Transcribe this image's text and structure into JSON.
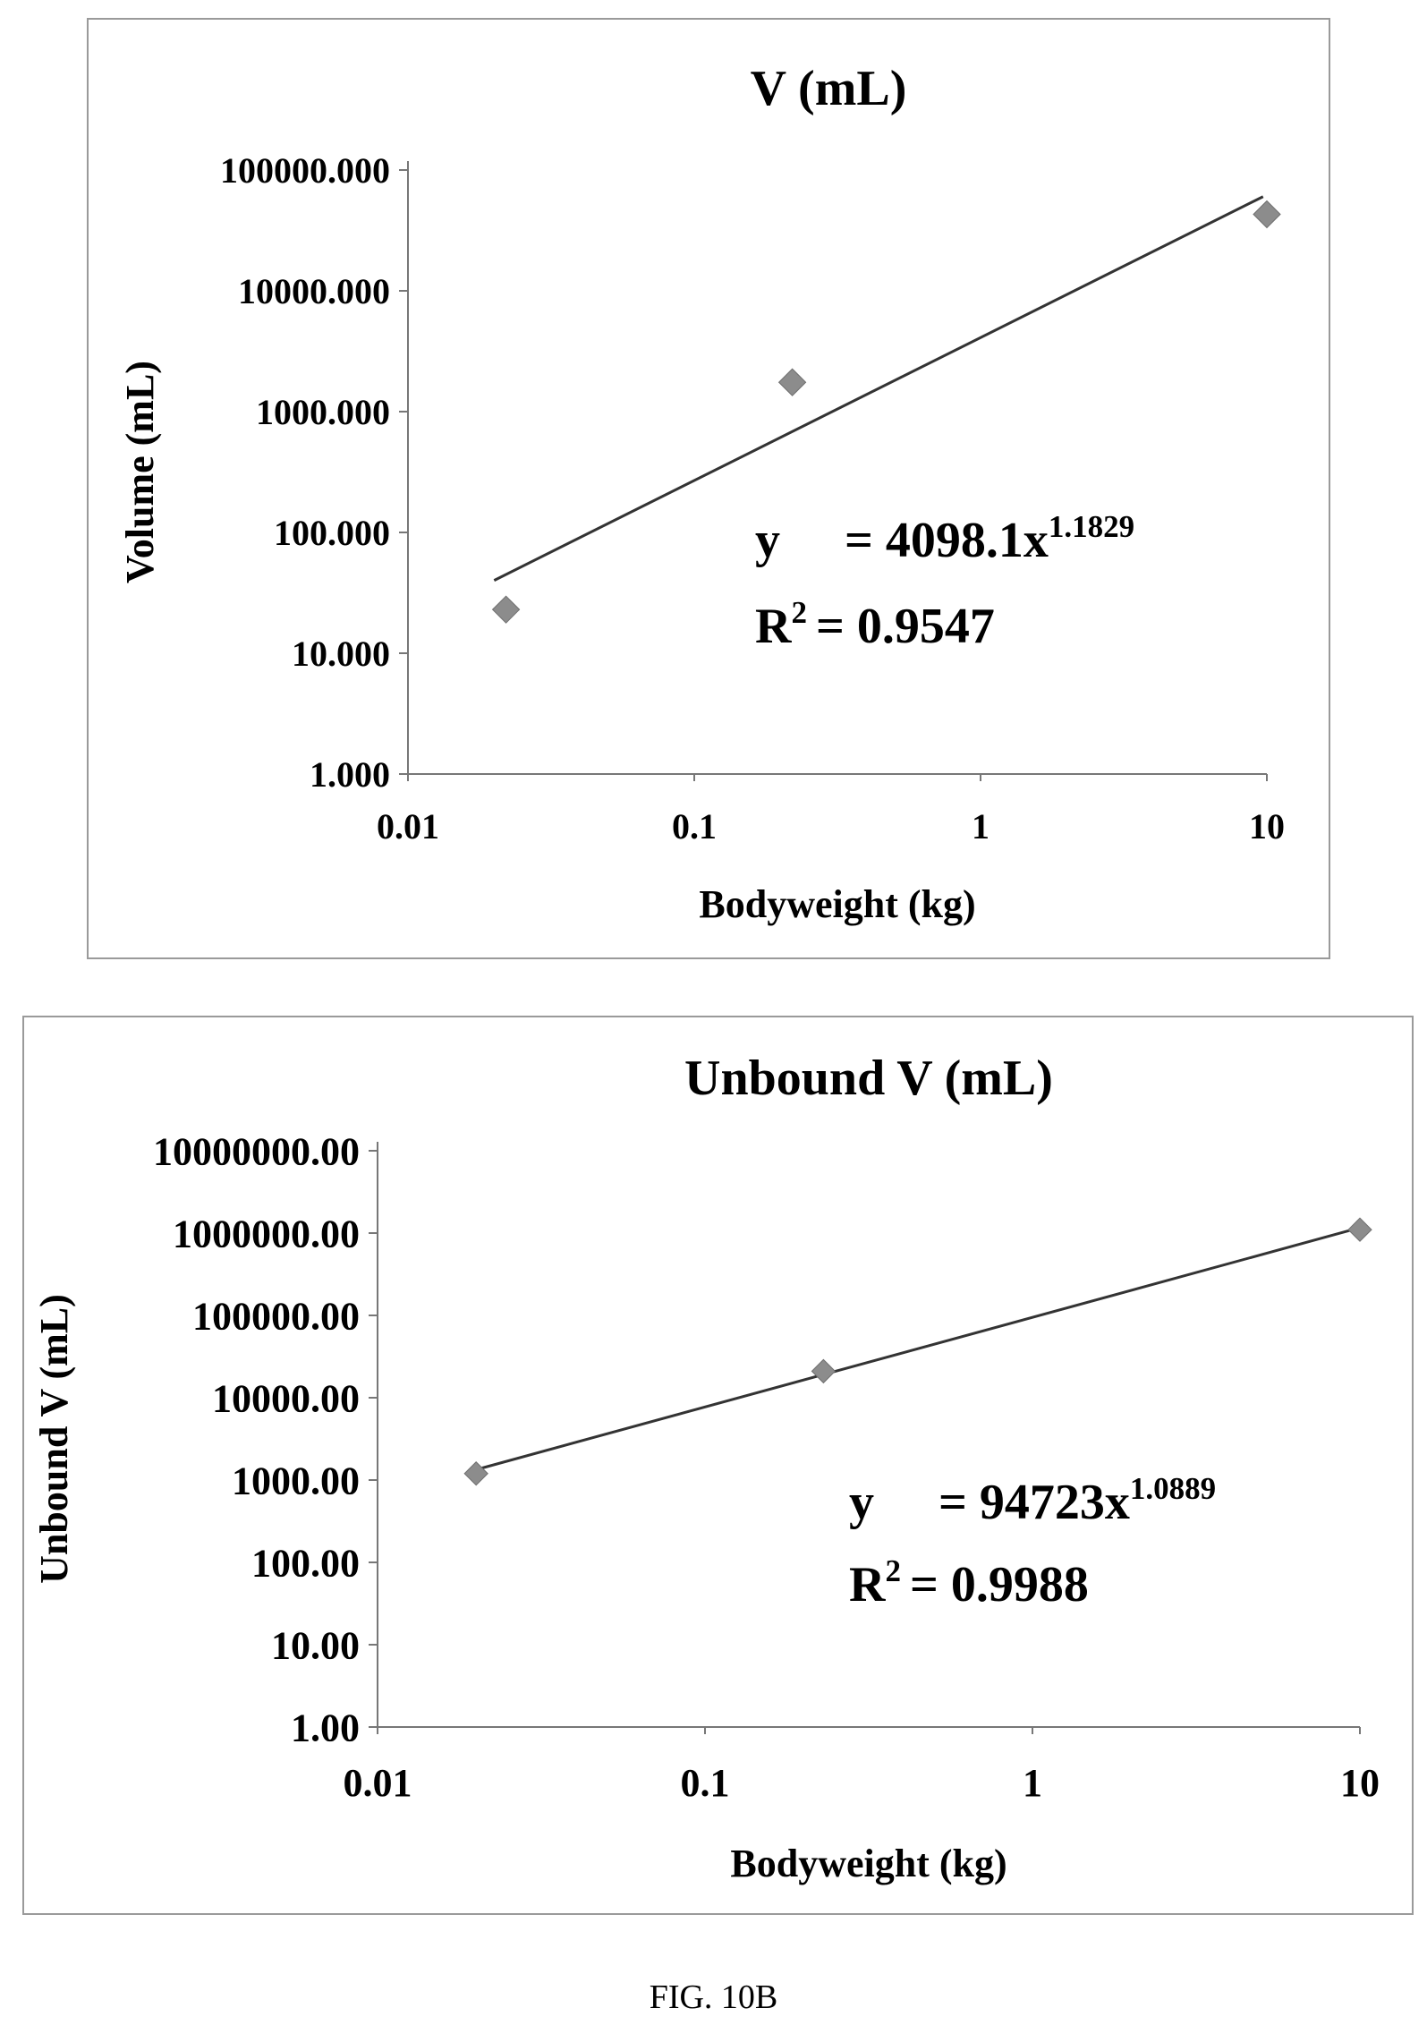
{
  "figure_caption": "FIG. 10B",
  "chart_data": [
    {
      "type": "scatter",
      "title": "V (mL)",
      "xlabel": "Bodyweight (kg)",
      "ylabel": "Volume (mL)",
      "x_scale": "log",
      "y_scale": "log",
      "xlim": [
        0.01,
        10
      ],
      "ylim": [
        1,
        100000
      ],
      "x_ticks": [
        "0.01",
        "0.1",
        "1",
        "10"
      ],
      "y_ticks": [
        "1.000",
        "10.000",
        "100.000",
        "1000.000",
        "10000.000",
        "100000.000"
      ],
      "points": [
        {
          "x": 0.022,
          "y": 23
        },
        {
          "x": 0.22,
          "y": 1750
        },
        {
          "x": 10,
          "y": 43000
        }
      ],
      "trendline": {
        "type": "power",
        "coefficient": 4098.1,
        "exponent": 1.1829,
        "x_range": [
          0.02,
          9.7
        ]
      },
      "equation": {
        "prefix": "y",
        "body": "= 4098.1x",
        "exponent": "1.1829"
      },
      "r_squared": {
        "label": "R",
        "sup": "2",
        "value": "= 0.9547"
      },
      "marker_color": "#8c8c8c",
      "line_color": "#333333",
      "grid": false,
      "legend": "none"
    },
    {
      "type": "scatter",
      "title": "Unbound V (mL)",
      "xlabel": "Bodyweight (kg)",
      "ylabel": "Unbound V (mL)",
      "x_scale": "log",
      "y_scale": "log",
      "xlim": [
        0.01,
        10
      ],
      "ylim": [
        1,
        10000000
      ],
      "x_ticks": [
        "0.01",
        "0.1",
        "1",
        "10"
      ],
      "y_ticks": [
        "1.00",
        "10.00",
        "100.00",
        "1000.00",
        "10000.00",
        "100000.00",
        "1000000.00",
        "10000000.00"
      ],
      "points": [
        {
          "x": 0.02,
          "y": 1200
        },
        {
          "x": 0.23,
          "y": 21000
        },
        {
          "x": 10,
          "y": 1100000
        }
      ],
      "trendline": {
        "type": "power",
        "coefficient": 94723,
        "exponent": 1.0889,
        "x_range": [
          0.02,
          10
        ]
      },
      "equation": {
        "prefix": "y",
        "body": "= 94723x",
        "exponent": "1.0889"
      },
      "r_squared": {
        "label": "R",
        "sup": "2",
        "value": "= 0.9988"
      },
      "marker_color": "#8c8c8c",
      "line_color": "#333333",
      "grid": false,
      "legend": "none"
    }
  ]
}
